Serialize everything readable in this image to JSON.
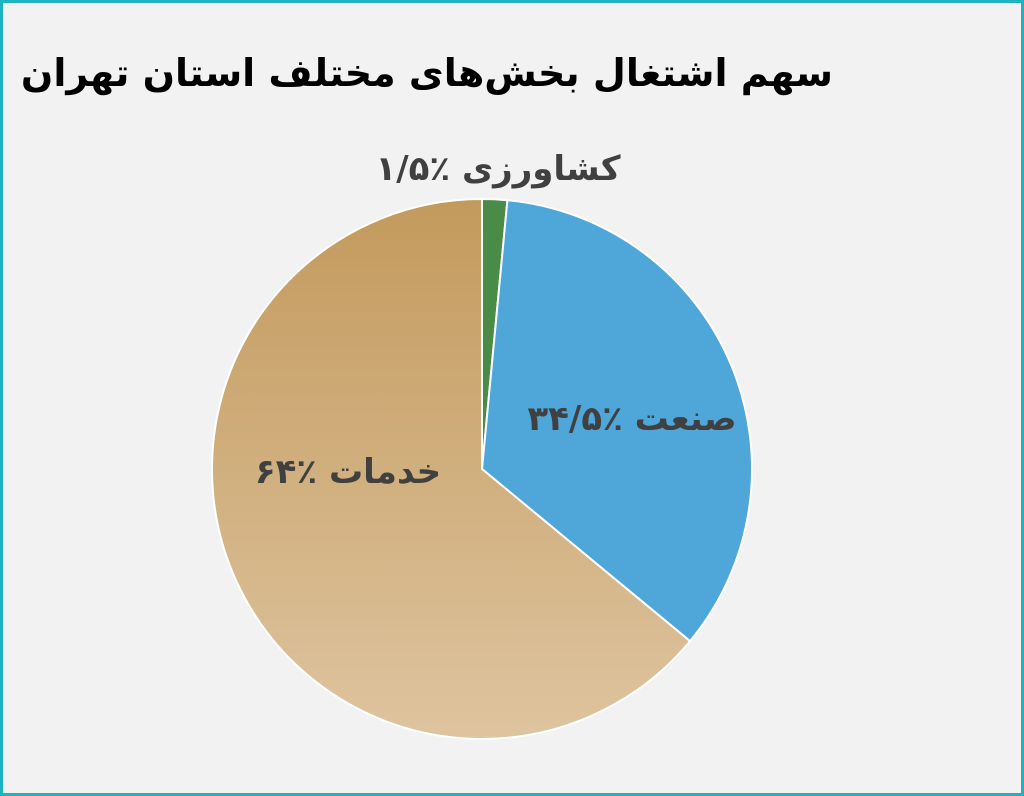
{
  "chart_data": {
    "type": "pie",
    "title": "سهم اشتغال بخش‌های مختلف استان تهران",
    "slices": [
      {
        "label": "کشاورزی ٪۱/۵",
        "name": "کشاورزی",
        "value": 1.5,
        "color": "#4a8c47"
      },
      {
        "label": "صنعت ٪۳۴/۵",
        "name": "صنعت",
        "value": 34.5,
        "color": "#4ea6d9"
      },
      {
        "label": "خدمات ٪۶۴",
        "name": "خدمات",
        "value": 64,
        "color": "#d2b287"
      }
    ],
    "legend": "none",
    "data_labels": "on-slice"
  },
  "colors": {
    "border": "#1fb3c2",
    "background": "#f2f2f2",
    "label_text": "#404040",
    "service_gradient_top": "#c39a5d",
    "service_gradient_bottom": "#dec49f"
  }
}
